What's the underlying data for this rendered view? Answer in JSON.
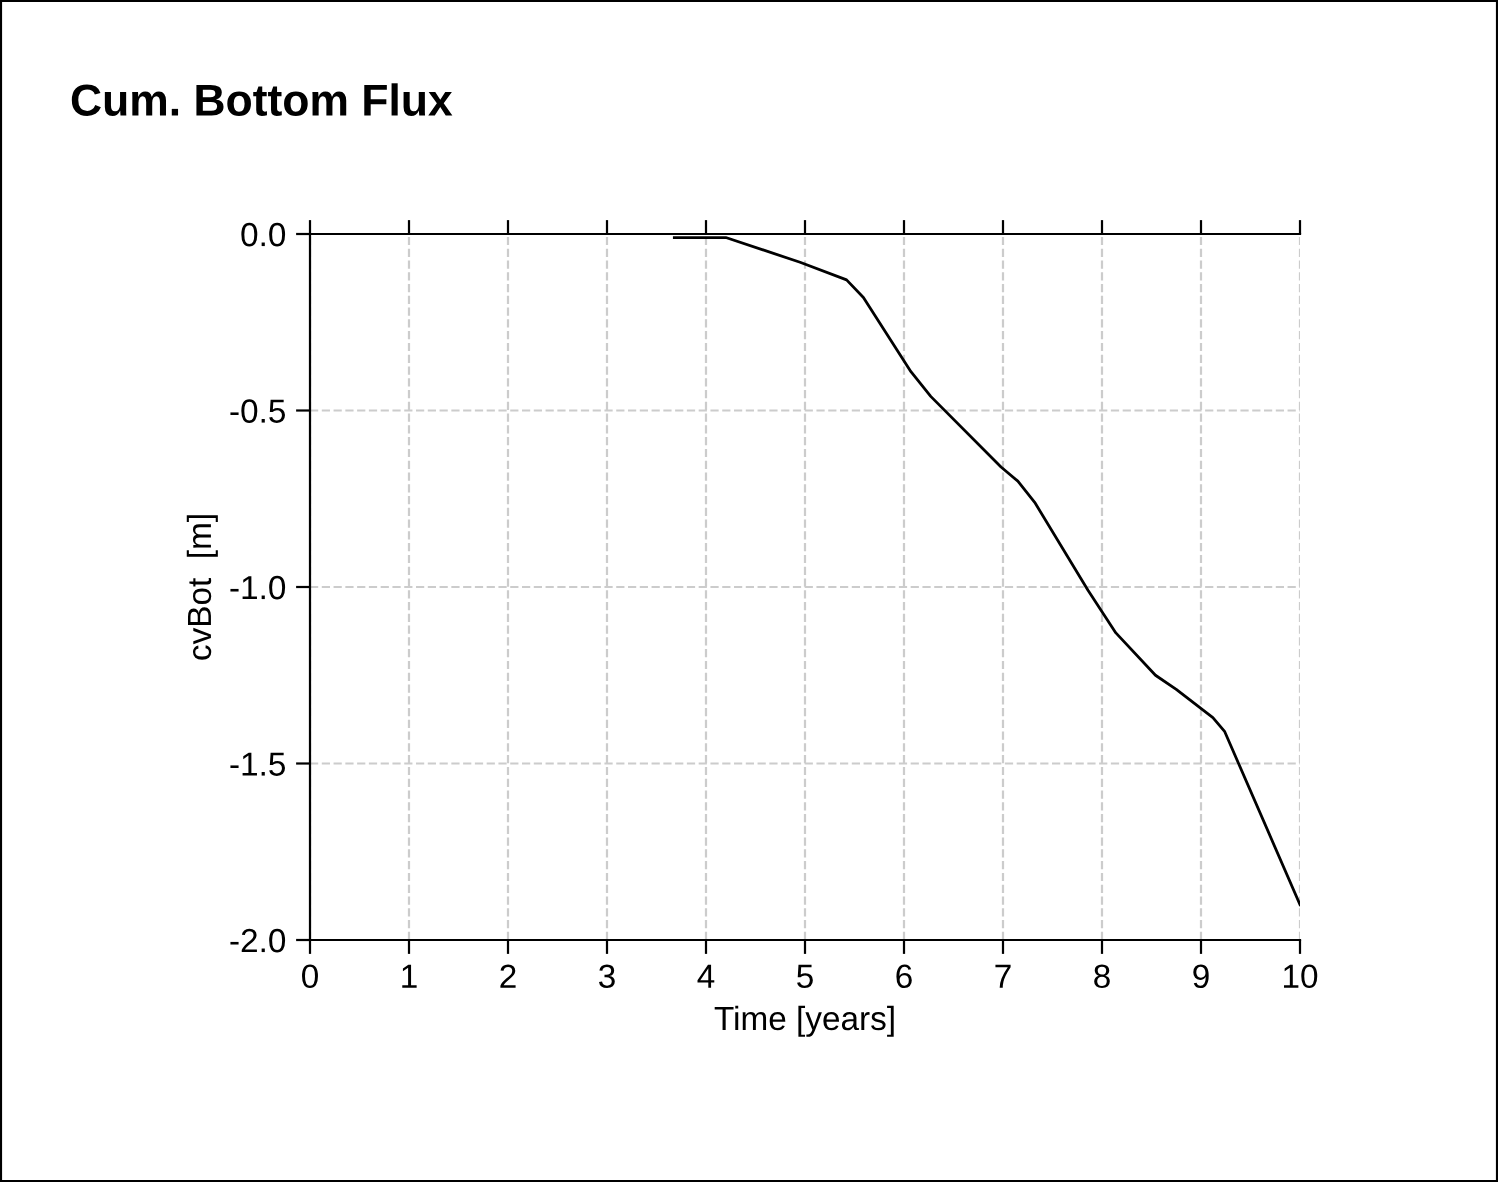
{
  "chart_data": {
    "type": "line",
    "title": "Cum. Bottom Flux",
    "xlabel": "Time [years]",
    "ylabel": "cvBot  [m]",
    "x": [
      3.68,
      4.0,
      4.2,
      4.95,
      5.42,
      5.59,
      6.07,
      6.27,
      6.98,
      7.15,
      7.32,
      7.86,
      8.14,
      8.54,
      8.75,
      9.12,
      9.24,
      10.0
    ],
    "series": [
      {
        "color": "#000000",
        "values": [
          -0.01,
          -0.01,
          -0.01,
          -0.08,
          -0.13,
          -0.18,
          -0.39,
          -0.46,
          -0.66,
          -0.7,
          -0.76,
          -1.01,
          -1.13,
          -1.25,
          -1.29,
          -1.37,
          -1.41,
          -1.9
        ]
      }
    ],
    "xlim": [
      0,
      10
    ],
    "ylim": [
      -2.0,
      0.0
    ],
    "xticks": [
      0,
      1,
      2,
      3,
      4,
      5,
      6,
      7,
      8,
      9,
      10
    ],
    "yticks": [
      {
        "value": -2.0,
        "label": "-2.0"
      },
      {
        "value": -1.5,
        "label": "-1.5"
      },
      {
        "value": -1.0,
        "label": "-1.0"
      },
      {
        "value": -0.5,
        "label": "-0.5"
      },
      {
        "value": 0.0,
        "label": "0.0"
      }
    ],
    "grid": true,
    "marker": "none",
    "line_style": "solid"
  }
}
